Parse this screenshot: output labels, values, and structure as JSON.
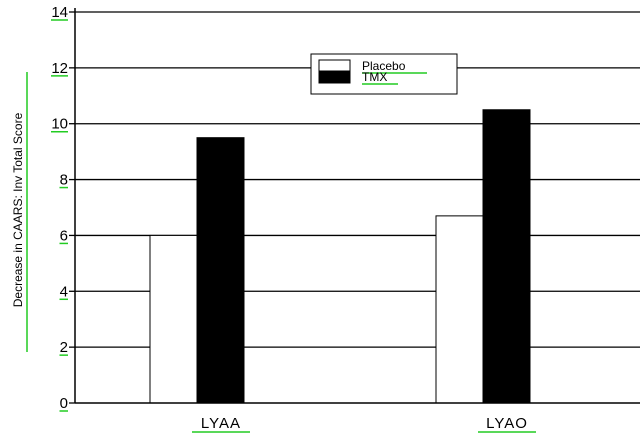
{
  "chart_data": {
    "type": "bar",
    "categories": [
      "LYAA",
      "LYAO"
    ],
    "series": [
      {
        "name": "Placebo",
        "values": [
          6.0,
          6.7
        ],
        "color": "#ffffff"
      },
      {
        "name": "TMX",
        "values": [
          9.5,
          10.5
        ],
        "color": "#000000"
      }
    ],
    "ylabel": "Decrease in CAARS: Inv Total Score",
    "xlabel": "",
    "ylim": [
      0,
      14
    ],
    "yticks": [
      0,
      2,
      4,
      6,
      8,
      10,
      12,
      14
    ],
    "grid": "horizontal",
    "legend_position": "top-center",
    "colors": {
      "axis": "#000000",
      "underline": "#22cc22"
    }
  }
}
